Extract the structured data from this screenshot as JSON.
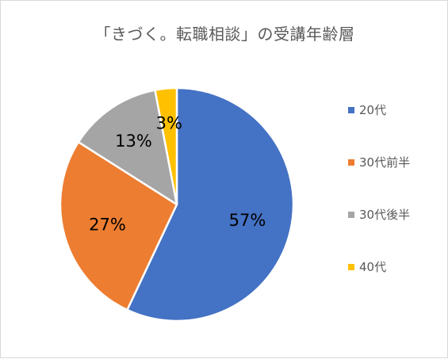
{
  "chart_data": {
    "type": "pie",
    "title": "「きづく。転職相談」の受講年齢層",
    "categories": [
      "20代",
      "30代前半",
      "30代後半",
      "40代"
    ],
    "values": [
      57,
      27,
      13,
      3
    ],
    "data_labels": [
      "57%",
      "27%",
      "13%",
      "3%"
    ],
    "colors": [
      "#4472c4",
      "#ed7d31",
      "#a5a5a5",
      "#ffc000"
    ],
    "legend_position": "right"
  }
}
